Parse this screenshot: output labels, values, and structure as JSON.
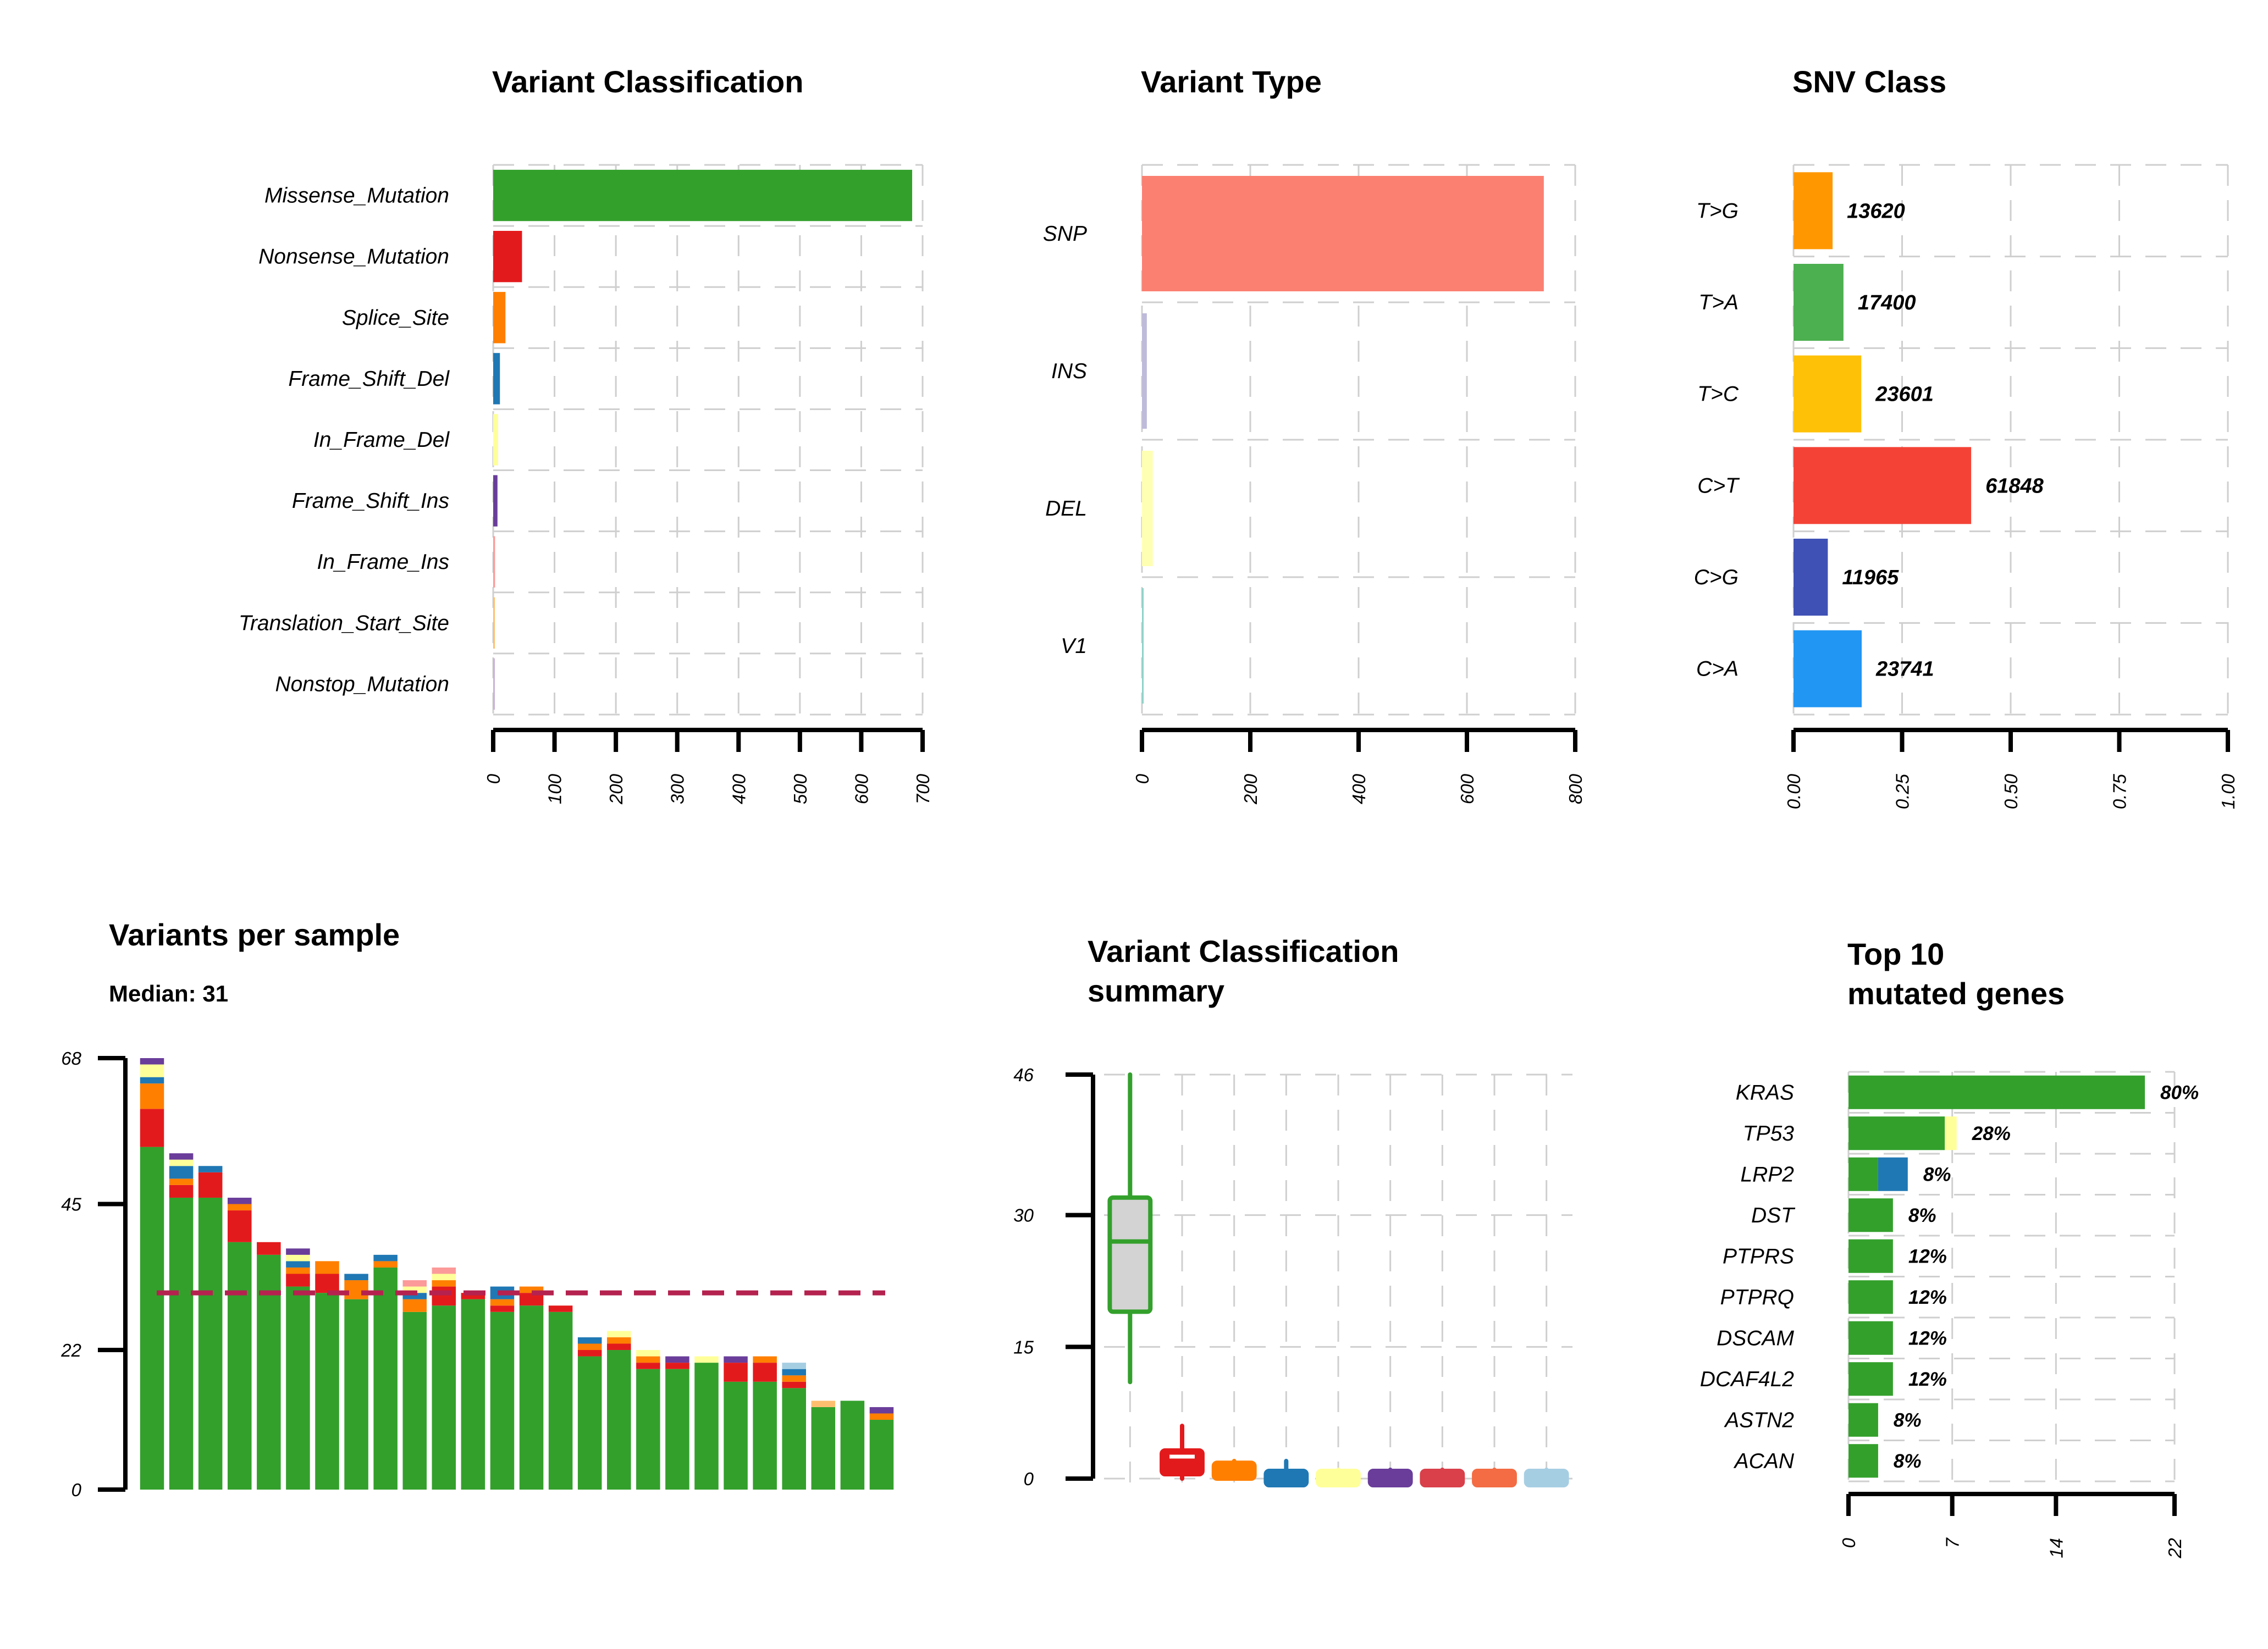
{
  "chart_data": [
    {
      "id": "variant_classification",
      "type": "bar",
      "orientation": "horizontal",
      "title": "Variant Classification",
      "categories": [
        "Missense_Mutation",
        "Nonsense_Mutation",
        "Splice_Site",
        "Frame_Shift_Del",
        "In_Frame_Del",
        "Frame_Shift_Ins",
        "In_Frame_Ins",
        "Translation_Start_Site",
        "Nonstop_Mutation"
      ],
      "values": [
        683,
        47,
        20,
        11,
        8,
        7,
        3,
        2,
        1
      ],
      "colors": [
        "#33a02c",
        "#e31a1c",
        "#ff7f00",
        "#1f78b4",
        "#ffff99",
        "#6a3d9a",
        "#fb9a99",
        "#fdbf6f",
        "#cab2d6"
      ],
      "ticks": [
        "0",
        "100",
        "200",
        "300",
        "400",
        "500",
        "600",
        "700"
      ],
      "xlim": [
        0,
        700
      ],
      "grid": true
    },
    {
      "id": "variant_type",
      "type": "bar",
      "orientation": "horizontal",
      "title": "Variant Type",
      "categories": [
        "SNP",
        "INS",
        "DEL",
        "V1"
      ],
      "values": [
        742,
        9,
        20,
        2
      ],
      "colors": [
        "#fb8072",
        "#bebada",
        "#ffffb3",
        "#8dd3c7"
      ],
      "ticks": [
        "0",
        "200",
        "400",
        "600",
        "800"
      ],
      "xlim": [
        0,
        800
      ],
      "grid": true
    },
    {
      "id": "snv_class",
      "type": "bar",
      "orientation": "horizontal",
      "title": "SNV Class",
      "categories": [
        "T>G",
        "T>A",
        "T>C",
        "C>T",
        "C>G",
        "C>A"
      ],
      "values": [
        0.09,
        0.115,
        0.156,
        0.409,
        0.079,
        0.157
      ],
      "labels": [
        "13620",
        "17400",
        "23601",
        "61848",
        "11965",
        "23741"
      ],
      "colors": [
        "#ff9800",
        "#4caf50",
        "#ffc107",
        "#f44336",
        "#3f51b5",
        "#2196f3"
      ],
      "ticks": [
        "0.00",
        "0.25",
        "0.50",
        "0.75",
        "1.00"
      ],
      "xlim": [
        0,
        1
      ],
      "grid": true
    },
    {
      "id": "variants_per_sample",
      "type": "bar",
      "stacked": true,
      "title": "Variants per sample",
      "subtitle": "Median: 31",
      "median": 31,
      "ylim": [
        0,
        68
      ],
      "yticks": [
        0,
        22,
        45,
        68
      ],
      "series": [
        {
          "color": "#33a02c",
          "values": [
            54,
            46,
            46,
            39,
            37,
            32,
            31,
            30,
            35,
            28,
            29,
            30,
            28,
            29,
            28,
            21,
            22,
            19,
            19,
            20,
            17,
            17,
            16,
            13,
            14,
            11
          ]
        },
        {
          "color": "#e31a1c",
          "values": [
            6,
            2,
            4,
            5,
            2,
            2,
            3,
            0,
            0,
            0,
            3,
            1,
            1,
            2,
            1,
            1,
            1,
            1,
            1,
            0,
            3,
            3,
            1,
            0,
            0,
            0
          ]
        },
        {
          "color": "#ff7f00",
          "values": [
            4,
            1,
            0,
            1,
            0,
            1,
            2,
            3,
            1,
            2,
            1,
            0,
            1,
            1,
            0,
            1,
            1,
            1,
            0,
            0,
            0,
            1,
            1,
            0,
            0,
            1
          ]
        },
        {
          "color": "#1f78b4",
          "values": [
            1,
            2,
            1,
            0,
            0,
            1,
            0,
            1,
            1,
            1,
            0,
            0,
            2,
            0,
            0,
            1,
            0,
            0,
            0,
            0,
            0,
            0,
            1,
            0,
            0,
            0
          ]
        },
        {
          "color": "#ffff99",
          "values": [
            2,
            1,
            0,
            0,
            0,
            1,
            0,
            0,
            0,
            1,
            1,
            0,
            0,
            0,
            0,
            0,
            1,
            1,
            0,
            1,
            0,
            0,
            0,
            0,
            0,
            0
          ]
        },
        {
          "color": "#6a3d9a",
          "values": [
            1,
            1,
            0,
            1,
            0,
            1,
            0,
            0,
            0,
            0,
            0,
            0,
            0,
            0,
            0,
            0,
            0,
            0,
            1,
            0,
            1,
            0,
            0,
            0,
            0,
            1
          ]
        },
        {
          "color": "#fb9a99",
          "values": [
            0,
            0,
            0,
            0,
            0,
            0,
            0,
            0,
            0,
            1,
            1,
            0,
            0,
            0,
            0,
            0,
            0,
            0,
            0,
            0,
            0,
            0,
            0,
            0,
            0,
            0
          ]
        },
        {
          "color": "#a6cee3",
          "values": [
            0,
            0,
            0,
            0,
            0,
            0,
            0,
            0,
            0,
            0,
            0,
            0,
            0,
            0,
            0,
            0,
            0,
            0,
            0,
            0,
            0,
            0,
            1,
            0,
            0,
            0
          ]
        },
        {
          "color": "#fdbf6f",
          "values": [
            0,
            0,
            0,
            0,
            0,
            0,
            0,
            0,
            0,
            0,
            0,
            0,
            0,
            0,
            0,
            0,
            0,
            0,
            0,
            0,
            0,
            0,
            0,
            1,
            0,
            0
          ]
        }
      ]
    },
    {
      "id": "variant_classification_summary",
      "type": "box",
      "title": "Variant Classification summary",
      "title_lines": [
        "Variant Classification",
        "summary"
      ],
      "ylim": [
        0,
        46
      ],
      "yticks": [
        0,
        15,
        30,
        46
      ],
      "boxes": [
        {
          "color": "#33a02c",
          "fill": "#d3d3d3",
          "min": 11,
          "q1": 19,
          "median": 27,
          "q3": 32,
          "max": 46
        },
        {
          "color": "#e31a1c",
          "fill": "#e31a1c",
          "min": 0,
          "q1": 0.5,
          "median": 2.5,
          "q3": 3.2,
          "max": 6
        },
        {
          "color": "#ff7f00",
          "fill": "#ff7f00",
          "min": 0,
          "q1": 0,
          "median": 0.8,
          "q3": 1.8,
          "max": 2
        },
        {
          "color": "#1f78b4",
          "fill": "#1f78b4",
          "min": 0,
          "q1": 0,
          "median": 0.5,
          "q3": 1,
          "max": 2
        },
        {
          "color": "#ffff99",
          "fill": "#ffff99",
          "min": 0,
          "q1": 0,
          "median": 0,
          "q3": 1,
          "max": 1
        },
        {
          "color": "#6a3d9a",
          "fill": "#6a3d9a",
          "min": 0,
          "q1": 0,
          "median": 0,
          "q3": 1,
          "max": 1
        },
        {
          "color": "#d9404a",
          "fill": "#d9404a",
          "min": 0,
          "q1": 0,
          "median": 0,
          "q3": 1,
          "max": 1
        },
        {
          "color": "#f36c43",
          "fill": "#f36c43",
          "min": 0,
          "q1": 0,
          "median": 0,
          "q3": 1,
          "max": 1
        },
        {
          "color": "#a6cee3",
          "fill": "#a6cee3",
          "min": 0,
          "q1": 0,
          "median": 0,
          "q3": 1,
          "max": 1
        }
      ]
    },
    {
      "id": "top10_mutated_genes",
      "type": "bar",
      "orientation": "horizontal",
      "stacked": true,
      "title": "Top 10 mutated genes",
      "title_lines": [
        "Top 10",
        "mutated genes"
      ],
      "xlim": [
        0,
        22
      ],
      "xticks": [
        0,
        7,
        14,
        22
      ],
      "genes": [
        {
          "name": "KRAS",
          "pct": "80%",
          "segments": [
            {
              "color": "#33a02c",
              "value": 20
            }
          ]
        },
        {
          "name": "TP53",
          "pct": "28%",
          "segments": [
            {
              "color": "#33a02c",
              "value": 6.5
            },
            {
              "color": "#ffff99",
              "value": 0.8
            }
          ]
        },
        {
          "name": "LRP2",
          "pct": "8%",
          "segments": [
            {
              "color": "#33a02c",
              "value": 2
            },
            {
              "color": "#1f78b4",
              "value": 2
            }
          ]
        },
        {
          "name": "DST",
          "pct": "8%",
          "segments": [
            {
              "color": "#33a02c",
              "value": 3
            }
          ]
        },
        {
          "name": "PTPRS",
          "pct": "12%",
          "segments": [
            {
              "color": "#33a02c",
              "value": 3
            }
          ]
        },
        {
          "name": "PTPRQ",
          "pct": "12%",
          "segments": [
            {
              "color": "#33a02c",
              "value": 3
            }
          ]
        },
        {
          "name": "DSCAM",
          "pct": "12%",
          "segments": [
            {
              "color": "#33a02c",
              "value": 3
            }
          ]
        },
        {
          "name": "DCAF4L2",
          "pct": "12%",
          "segments": [
            {
              "color": "#33a02c",
              "value": 3
            }
          ]
        },
        {
          "name": "ASTN2",
          "pct": "8%",
          "segments": [
            {
              "color": "#33a02c",
              "value": 2
            }
          ]
        },
        {
          "name": "ACAN",
          "pct": "8%",
          "segments": [
            {
              "color": "#33a02c",
              "value": 2
            }
          ]
        }
      ]
    }
  ]
}
